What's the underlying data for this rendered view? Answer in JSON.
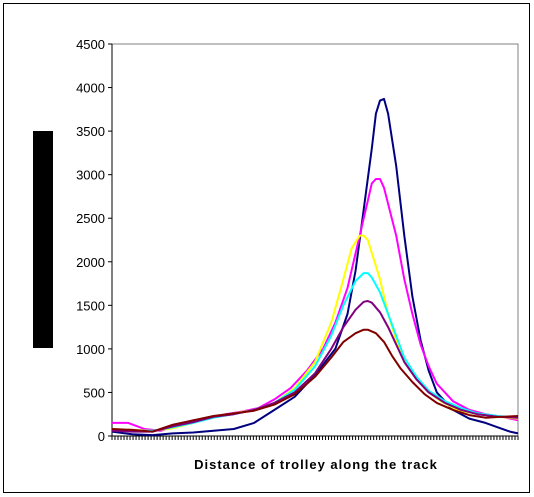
{
  "chart_data": {
    "type": "line",
    "title": "",
    "xlabel": "Distance of trolley along the track",
    "ylabel": "",
    "ylim": [
      0,
      4500
    ],
    "yticks": [
      0,
      500,
      1000,
      1500,
      2000,
      2500,
      3000,
      3500,
      4000,
      4500
    ],
    "xlim": [
      0,
      100
    ],
    "legend": "none",
    "grid": false,
    "series": [
      {
        "color": "#000080",
        "x": [
          0,
          5,
          10,
          15,
          20,
          25,
          30,
          35,
          40,
          45,
          50,
          55,
          58,
          60,
          62,
          64,
          65,
          66,
          67,
          68,
          70,
          72,
          74,
          76,
          78,
          80,
          84,
          88,
          92,
          95,
          98,
          100
        ],
        "values": [
          50,
          20,
          10,
          30,
          40,
          60,
          80,
          150,
          300,
          450,
          700,
          1000,
          1400,
          1900,
          2600,
          3300,
          3700,
          3850,
          3870,
          3700,
          3100,
          2300,
          1600,
          1100,
          750,
          500,
          300,
          200,
          150,
          100,
          50,
          30
        ]
      },
      {
        "color": "#ff00ff",
        "x": [
          0,
          4,
          8,
          12,
          16,
          20,
          24,
          28,
          32,
          36,
          40,
          44,
          48,
          52,
          55,
          58,
          61,
          63,
          64,
          65,
          66,
          67,
          70,
          72,
          74,
          76,
          78,
          80,
          84,
          88,
          92,
          96,
          100
        ],
        "values": [
          150,
          150,
          80,
          60,
          120,
          180,
          200,
          250,
          280,
          320,
          420,
          550,
          750,
          1000,
          1300,
          1700,
          2300,
          2700,
          2900,
          2950,
          2950,
          2850,
          2300,
          1800,
          1400,
          1050,
          800,
          600,
          400,
          300,
          250,
          220,
          180
        ]
      },
      {
        "color": "#ffff00",
        "x": [
          0,
          5,
          10,
          15,
          20,
          25,
          30,
          35,
          40,
          45,
          50,
          54,
          57,
          59,
          61,
          62,
          63,
          64,
          66,
          68,
          70,
          72,
          75,
          78,
          81,
          85,
          90,
          95,
          100
        ],
        "values": [
          80,
          70,
          60,
          90,
          150,
          220,
          260,
          300,
          380,
          550,
          850,
          1300,
          1800,
          2150,
          2300,
          2300,
          2250,
          2100,
          1800,
          1400,
          1100,
          850,
          650,
          500,
          400,
          300,
          250,
          220,
          200
        ]
      },
      {
        "color": "#00ffff",
        "x": [
          0,
          5,
          10,
          15,
          20,
          25,
          30,
          35,
          40,
          45,
          50,
          54,
          57,
          60,
          62,
          63,
          64,
          66,
          68,
          70,
          72,
          75,
          78,
          82,
          86,
          90,
          95,
          100
        ],
        "values": [
          70,
          60,
          60,
          100,
          150,
          210,
          250,
          300,
          380,
          530,
          800,
          1150,
          1500,
          1780,
          1870,
          1870,
          1820,
          1650,
          1400,
          1150,
          900,
          680,
          520,
          400,
          320,
          260,
          230,
          210
        ]
      },
      {
        "color": "#800080",
        "x": [
          0,
          5,
          10,
          15,
          20,
          25,
          30,
          35,
          40,
          45,
          50,
          54,
          57,
          60,
          62,
          63,
          64,
          66,
          68,
          70,
          72,
          75,
          78,
          82,
          86,
          90,
          95,
          100
        ],
        "values": [
          60,
          50,
          50,
          110,
          160,
          220,
          250,
          300,
          380,
          500,
          720,
          1000,
          1250,
          1450,
          1540,
          1550,
          1530,
          1420,
          1250,
          1050,
          850,
          650,
          500,
          380,
          300,
          250,
          220,
          210
        ]
      },
      {
        "color": "#800000",
        "x": [
          0,
          5,
          10,
          15,
          20,
          25,
          30,
          35,
          40,
          45,
          50,
          54,
          57,
          60,
          62,
          63,
          65,
          67,
          69,
          71,
          74,
          77,
          80,
          84,
          88,
          92,
          96,
          100
        ],
        "values": [
          80,
          70,
          50,
          130,
          180,
          230,
          260,
          290,
          360,
          480,
          680,
          900,
          1080,
          1180,
          1220,
          1220,
          1180,
          1080,
          920,
          780,
          620,
          480,
          380,
          300,
          240,
          210,
          220,
          230
        ]
      }
    ]
  }
}
